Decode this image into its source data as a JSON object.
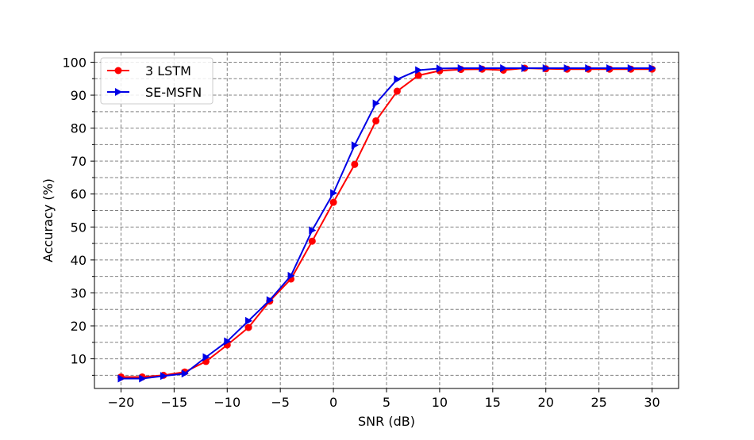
{
  "chart_data": {
    "type": "line",
    "title": "",
    "xlabel": "SNR (dB)",
    "ylabel": "Accuracy (%)",
    "xlim": [
      -22.5,
      32.5
    ],
    "ylim": [
      1,
      103
    ],
    "x_ticks": [
      -20,
      -15,
      -10,
      -5,
      0,
      5,
      10,
      15,
      20,
      25,
      30
    ],
    "x_tick_labels": [
      "−20",
      "−15",
      "−10",
      "−5",
      "0",
      "5",
      "10",
      "15",
      "20",
      "25",
      "30"
    ],
    "y_ticks": [
      10,
      20,
      30,
      40,
      50,
      60,
      70,
      80,
      90,
      100
    ],
    "y_tick_labels": [
      "10",
      "20",
      "30",
      "40",
      "50",
      "60",
      "70",
      "80",
      "90",
      "100"
    ],
    "y_minor_gridlines": [
      5,
      15,
      25,
      35,
      45,
      55,
      65,
      75,
      85,
      95
    ],
    "grid": true,
    "legend_position": "upper-left",
    "x": [
      -20,
      -18,
      -16,
      -14,
      -12,
      -10,
      -8,
      -6,
      -4,
      -2,
      0,
      2,
      4,
      6,
      8,
      10,
      12,
      14,
      16,
      18,
      20,
      22,
      24,
      26,
      28,
      30
    ],
    "series": [
      {
        "name": "3 LSTM",
        "color": "#ff0000",
        "marker": "circle",
        "values": [
          4.5,
          4.5,
          5.0,
          6.0,
          9.2,
          14.2,
          19.5,
          27.5,
          34.2,
          45.7,
          57.5,
          69.0,
          82.2,
          91.2,
          96.0,
          97.4,
          97.8,
          97.9,
          97.6,
          98.2,
          98.0,
          97.9,
          97.9,
          97.9,
          97.9,
          97.9
        ]
      },
      {
        "name": "SE-MSFN",
        "color": "#0000e6",
        "marker": "triangle-right",
        "values": [
          4.0,
          4.0,
          4.8,
          5.5,
          10.5,
          15.3,
          21.5,
          27.8,
          35.2,
          49.0,
          60.3,
          74.8,
          87.5,
          94.8,
          97.6,
          98.1,
          98.2,
          98.2,
          98.2,
          98.2,
          98.2,
          98.2,
          98.2,
          98.2,
          98.2,
          98.2
        ]
      }
    ]
  }
}
